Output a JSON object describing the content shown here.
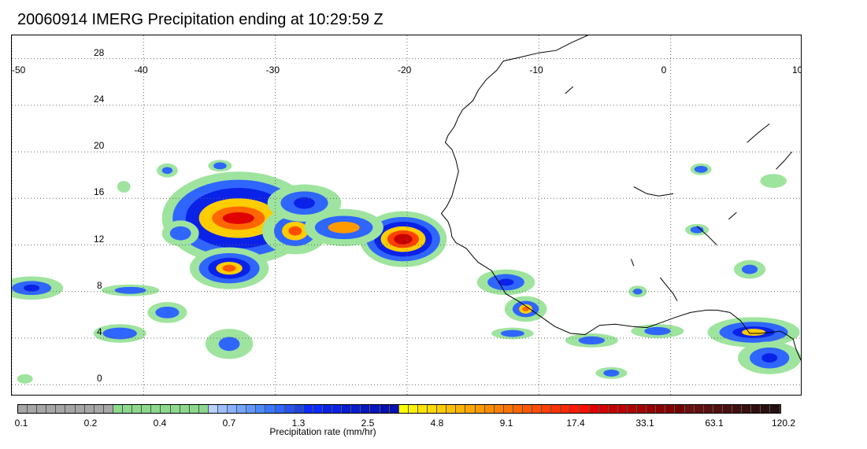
{
  "title": "20060914 IMERG Precipitation ending at 10:29:59 Z",
  "map": {
    "lon_range": [
      -50,
      10
    ],
    "lat_range": [
      -1,
      30
    ],
    "lon_ticks": [
      "-50",
      "-40",
      "-30",
      "-20",
      "-10",
      "0",
      "10"
    ],
    "lat_ticks": [
      "28",
      "24",
      "20",
      "16",
      "12",
      "8",
      "4",
      "0"
    ],
    "gridlines": "dotted",
    "coastline_color": "#000000"
  },
  "colorbar": {
    "title": "Precipitation rate (mm/hr)",
    "labels": [
      "0.1",
      "0.2",
      "0.4",
      "0.7",
      "1.3",
      "2.5",
      "4.8",
      "9.1",
      "17.4",
      "33.1",
      "63.1",
      "120.2"
    ],
    "colors": [
      "#a6a6a6",
      "#a6a6a6",
      "#a6a6a6",
      "#a6a6a6",
      "#a6a6a6",
      "#a6a6a6",
      "#a6a6a6",
      "#a6a6a6",
      "#a6a6a6",
      "#a6a6a6",
      "#8cd98c",
      "#8cd98c",
      "#8cd98c",
      "#8cd98c",
      "#8cd98c",
      "#8cd98c",
      "#8cd98c",
      "#8cd98c",
      "#8cd98c",
      "#8cd98c",
      "#b8cfff",
      "#9fbfff",
      "#8ab2ff",
      "#75a5ff",
      "#6098ff",
      "#4b8bff",
      "#3a78ff",
      "#2f66ff",
      "#2554f0",
      "#1f45e0",
      "#0a2bff",
      "#0a2bff",
      "#0a22e8",
      "#0a22e8",
      "#081cd0",
      "#081cd0",
      "#0616c0",
      "#0616c0",
      "#0410b0",
      "#0410b0",
      "#ffff00",
      "#fff200",
      "#ffe600",
      "#ffd900",
      "#ffcc00",
      "#ffc000",
      "#ffb300",
      "#ffa600",
      "#ff9900",
      "#ff8c00",
      "#ff8000",
      "#ff7300",
      "#ff6600",
      "#ff5900",
      "#ff4d00",
      "#ff4000",
      "#ff3300",
      "#ff2600",
      "#ff1a00",
      "#ff0d00",
      "#e00000",
      "#d40000",
      "#c80000",
      "#bc0000",
      "#b00000",
      "#a40000",
      "#980000",
      "#8c0000",
      "#800000",
      "#740000",
      "#6a1010",
      "#621010",
      "#5a1010",
      "#521010",
      "#4a1010",
      "#421010",
      "#3a1010",
      "#321010",
      "#2a1010",
      "#221010"
    ]
  },
  "cells": [
    {
      "cx": -32.8,
      "cy": 14.3,
      "layers": [
        [
          5.8,
          4.0,
          "#9ee49e"
        ],
        [
          5.0,
          3.3,
          "#2f66ff"
        ],
        [
          4.0,
          2.6,
          "#0a22e8"
        ],
        [
          3.0,
          1.7,
          "#ffcc00"
        ],
        [
          2.0,
          1.0,
          "#ff6600"
        ],
        [
          1.2,
          0.5,
          "#e00000"
        ]
      ]
    },
    {
      "cx": -20.3,
      "cy": 12.5,
      "layers": [
        [
          3.3,
          2.4,
          "#9ee49e"
        ],
        [
          2.8,
          1.9,
          "#2f66ff"
        ],
        [
          2.2,
          1.5,
          "#0a22e8"
        ],
        [
          1.7,
          1.1,
          "#ffcc00"
        ],
        [
          1.2,
          0.75,
          "#ff4000"
        ],
        [
          0.7,
          0.45,
          "#c80000"
        ]
      ]
    },
    {
      "cx": -33.5,
      "cy": 10.0,
      "layers": [
        [
          3.0,
          1.8,
          "#9ee49e"
        ],
        [
          2.3,
          1.3,
          "#2f66ff"
        ],
        [
          1.6,
          0.9,
          "#0a22e8"
        ],
        [
          1.0,
          0.55,
          "#ffcc00"
        ],
        [
          0.5,
          0.3,
          "#ff5900"
        ]
      ]
    },
    {
      "cx": -28.5,
      "cy": 13.2,
      "layers": [
        [
          2.5,
          2.0,
          "#9ee49e"
        ],
        [
          1.6,
          1.3,
          "#2f66ff"
        ],
        [
          1.0,
          0.8,
          "#ffcc00"
        ],
        [
          0.5,
          0.4,
          "#ff4d00"
        ]
      ]
    },
    {
      "cx": -24.8,
      "cy": 13.5,
      "layers": [
        [
          3.0,
          1.6,
          "#9ee49e"
        ],
        [
          2.2,
          1.0,
          "#2f66ff"
        ],
        [
          1.2,
          0.5,
          "#ff9900"
        ]
      ]
    },
    {
      "cx": -27.8,
      "cy": 15.6,
      "layers": [
        [
          2.8,
          1.6,
          "#9ee49e"
        ],
        [
          1.8,
          1.0,
          "#2f66ff"
        ],
        [
          0.8,
          0.5,
          "#0a22e8"
        ]
      ]
    },
    {
      "cx": -48.5,
      "cy": 8.3,
      "layers": [
        [
          2.4,
          1.0,
          "#9ee49e"
        ],
        [
          1.5,
          0.6,
          "#2f66ff"
        ],
        [
          0.6,
          0.3,
          "#0a22e8"
        ]
      ]
    },
    {
      "cx": -41.8,
      "cy": 4.4,
      "layers": [
        [
          2.0,
          0.8,
          "#9ee49e"
        ],
        [
          1.3,
          0.5,
          "#2f66ff"
        ]
      ]
    },
    {
      "cx": -38.2,
      "cy": 6.2,
      "layers": [
        [
          1.5,
          0.9,
          "#9ee49e"
        ],
        [
          0.9,
          0.5,
          "#2f66ff"
        ]
      ]
    },
    {
      "cx": -33.5,
      "cy": 3.5,
      "layers": [
        [
          1.8,
          1.3,
          "#9ee49e"
        ],
        [
          0.8,
          0.6,
          "#2f66ff"
        ]
      ]
    },
    {
      "cx": -41.0,
      "cy": 8.1,
      "layers": [
        [
          2.2,
          0.5,
          "#9ee49e"
        ],
        [
          1.2,
          0.3,
          "#2f66ff"
        ]
      ]
    },
    {
      "cx": -12.5,
      "cy": 8.8,
      "layers": [
        [
          2.2,
          1.1,
          "#9ee49e"
        ],
        [
          1.4,
          0.7,
          "#2f66ff"
        ],
        [
          0.6,
          0.3,
          "#0a22e8"
        ]
      ]
    },
    {
      "cx": -11.0,
      "cy": 6.5,
      "layers": [
        [
          1.6,
          1.1,
          "#9ee49e"
        ],
        [
          1.0,
          0.7,
          "#2f66ff"
        ],
        [
          0.5,
          0.4,
          "#ffcc00"
        ],
        [
          0.25,
          0.2,
          "#ff6600"
        ]
      ]
    },
    {
      "cx": -12.0,
      "cy": 4.4,
      "layers": [
        [
          1.6,
          0.5,
          "#9ee49e"
        ],
        [
          0.9,
          0.3,
          "#2f66ff"
        ]
      ]
    },
    {
      "cx": -6.0,
      "cy": 3.8,
      "layers": [
        [
          2.0,
          0.6,
          "#9ee49e"
        ],
        [
          1.0,
          0.35,
          "#2f66ff"
        ]
      ]
    },
    {
      "cx": -1.0,
      "cy": 4.6,
      "layers": [
        [
          2.0,
          0.6,
          "#9ee49e"
        ],
        [
          1.0,
          0.35,
          "#2f66ff"
        ]
      ]
    },
    {
      "cx": 6.3,
      "cy": 4.5,
      "layers": [
        [
          3.5,
          1.3,
          "#9ee49e"
        ],
        [
          2.6,
          0.9,
          "#2f66ff"
        ],
        [
          1.6,
          0.5,
          "#0a22e8"
        ],
        [
          0.9,
          0.3,
          "#ffcc00"
        ]
      ]
    },
    {
      "cx": 7.5,
      "cy": 2.3,
      "layers": [
        [
          2.4,
          1.4,
          "#9ee49e"
        ],
        [
          1.5,
          0.9,
          "#2f66ff"
        ],
        [
          0.6,
          0.4,
          "#0a22e8"
        ]
      ]
    },
    {
      "cx": 2.3,
      "cy": 18.5,
      "layers": [
        [
          0.8,
          0.5,
          "#9ee49e"
        ],
        [
          0.5,
          0.3,
          "#2f66ff"
        ]
      ]
    },
    {
      "cx": 2.0,
      "cy": 13.3,
      "layers": [
        [
          0.9,
          0.5,
          "#9ee49e"
        ],
        [
          0.5,
          0.3,
          "#2f66ff"
        ]
      ]
    },
    {
      "cx": 6.0,
      "cy": 9.9,
      "layers": [
        [
          1.2,
          0.8,
          "#9ee49e"
        ],
        [
          0.6,
          0.4,
          "#2f66ff"
        ]
      ]
    },
    {
      "cx": -38.2,
      "cy": 18.4,
      "layers": [
        [
          0.8,
          0.6,
          "#9ee49e"
        ],
        [
          0.4,
          0.3,
          "#2f66ff"
        ]
      ]
    },
    {
      "cx": -34.2,
      "cy": 18.8,
      "layers": [
        [
          0.9,
          0.5,
          "#9ee49e"
        ],
        [
          0.5,
          0.3,
          "#2f66ff"
        ]
      ]
    },
    {
      "cx": -37.2,
      "cy": 13.0,
      "layers": [
        [
          1.4,
          1.1,
          "#9ee49e"
        ],
        [
          0.8,
          0.6,
          "#2f66ff"
        ]
      ]
    },
    {
      "cx": -4.5,
      "cy": 1.0,
      "layers": [
        [
          1.2,
          0.5,
          "#9ee49e"
        ],
        [
          0.6,
          0.3,
          "#2f66ff"
        ]
      ]
    },
    {
      "cx": 7.8,
      "cy": 17.5,
      "layers": [
        [
          1.0,
          0.6,
          "#9ee49e"
        ]
      ]
    },
    {
      "cx": -41.5,
      "cy": 17.0,
      "layers": [
        [
          0.5,
          0.5,
          "#9ee49e"
        ]
      ]
    },
    {
      "cx": -2.5,
      "cy": 8.0,
      "layers": [
        [
          0.7,
          0.5,
          "#9ee49e"
        ],
        [
          0.35,
          0.25,
          "#2f66ff"
        ]
      ]
    },
    {
      "cx": -49.0,
      "cy": 0.5,
      "layers": [
        [
          0.6,
          0.4,
          "#9ee49e"
        ]
      ]
    }
  ]
}
